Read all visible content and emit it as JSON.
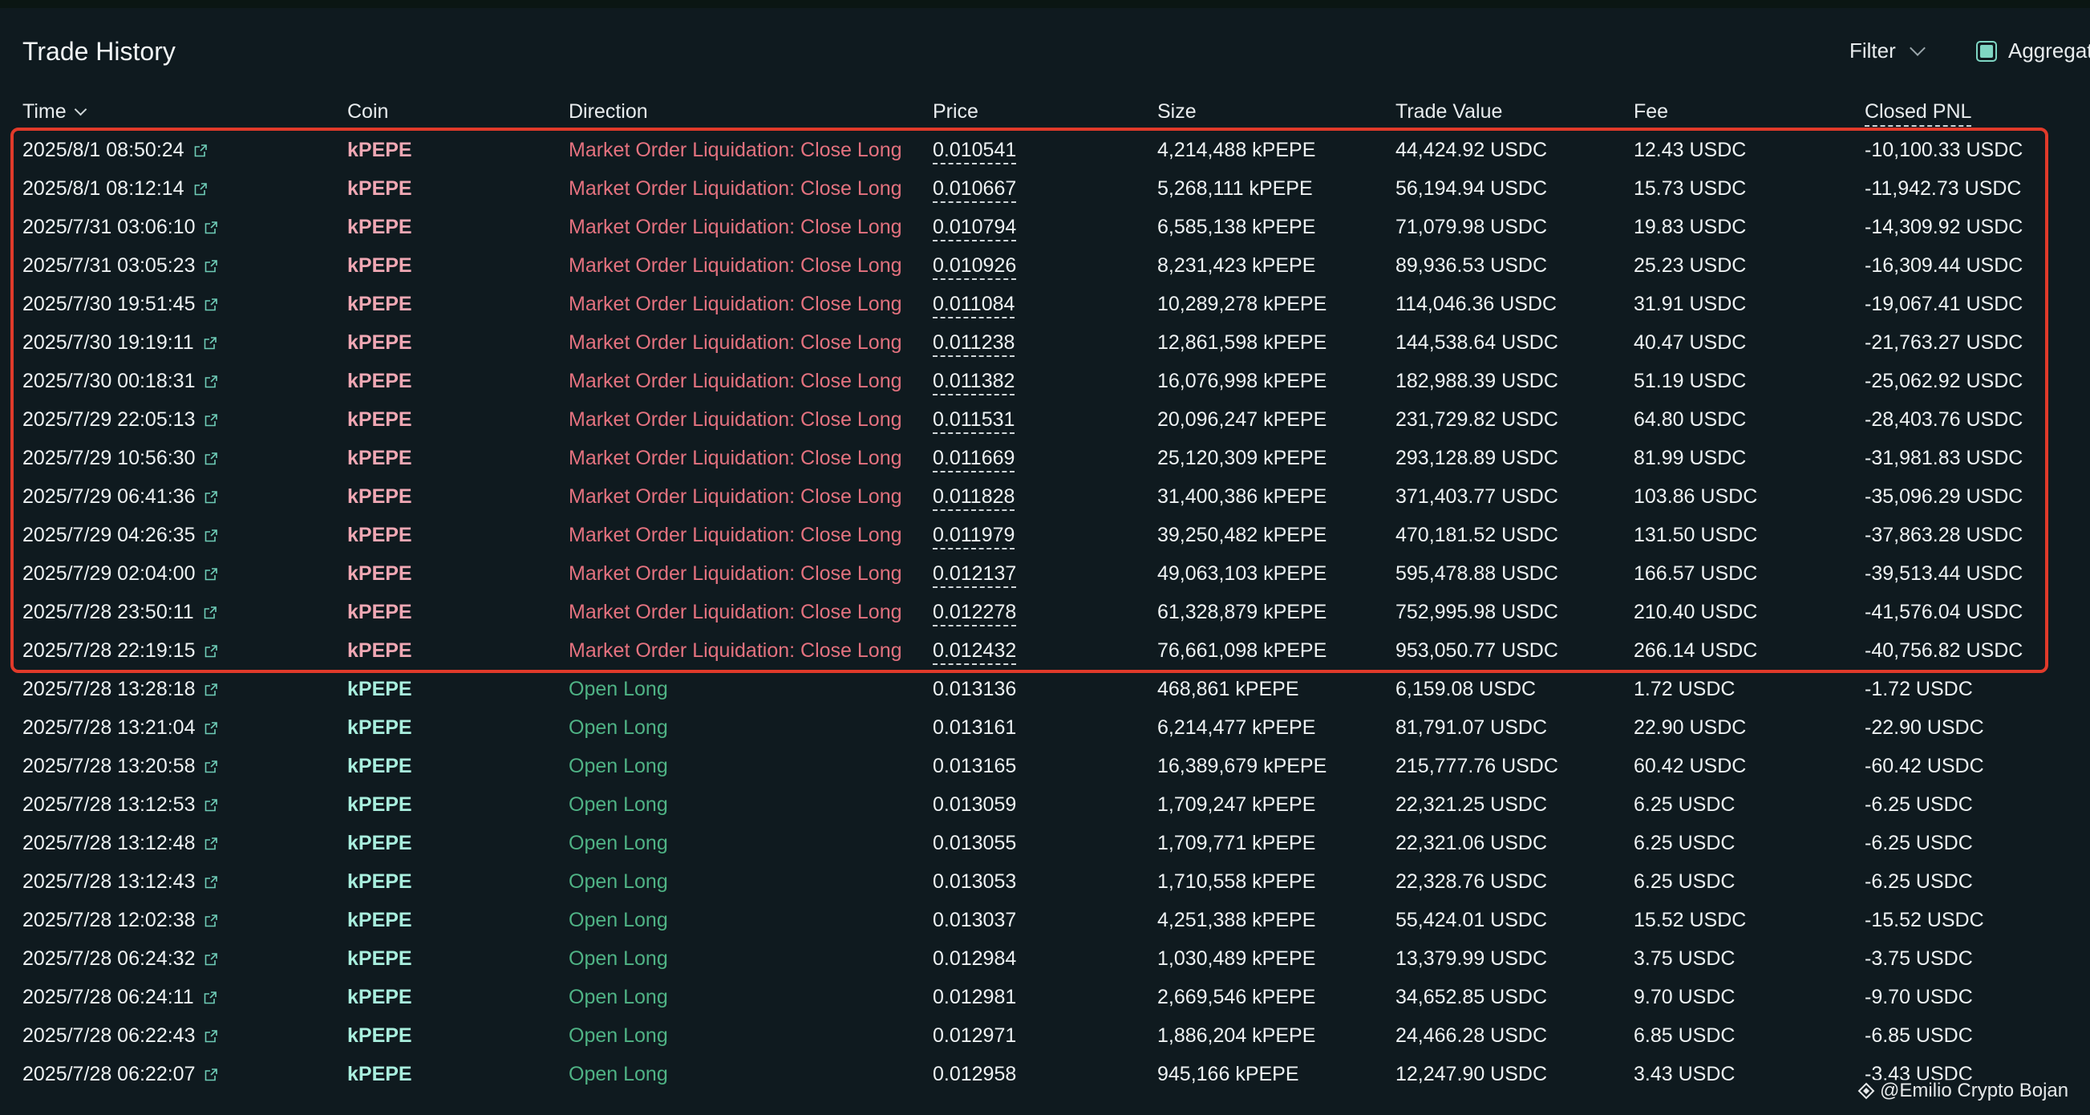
{
  "header": {
    "title": "Trade History",
    "filter_label": "Filter",
    "aggregate_label": "Aggregate"
  },
  "columns": {
    "time": "Time",
    "coin": "Coin",
    "direction": "Direction",
    "price": "Price",
    "size": "Size",
    "trade_value": "Trade Value",
    "fee": "Fee",
    "closed_pnl": "Closed PNL"
  },
  "rows": [
    {
      "time": "2025/8/1 08:50:24",
      "coin": "kPEPE",
      "direction": "Market Order Liquidation: Close Long",
      "price": "0.010541",
      "size": "4,214,488 kPEPE",
      "trade_value": "44,424.92 USDC",
      "fee": "12.43 USDC",
      "closed_pnl": "-10,100.33 USDC",
      "type": "liquidation"
    },
    {
      "time": "2025/8/1 08:12:14",
      "coin": "kPEPE",
      "direction": "Market Order Liquidation: Close Long",
      "price": "0.010667",
      "size": "5,268,111 kPEPE",
      "trade_value": "56,194.94 USDC",
      "fee": "15.73 USDC",
      "closed_pnl": "-11,942.73 USDC",
      "type": "liquidation"
    },
    {
      "time": "2025/7/31 03:06:10",
      "coin": "kPEPE",
      "direction": "Market Order Liquidation: Close Long",
      "price": "0.010794",
      "size": "6,585,138 kPEPE",
      "trade_value": "71,079.98 USDC",
      "fee": "19.83 USDC",
      "closed_pnl": "-14,309.92 USDC",
      "type": "liquidation"
    },
    {
      "time": "2025/7/31 03:05:23",
      "coin": "kPEPE",
      "direction": "Market Order Liquidation: Close Long",
      "price": "0.010926",
      "size": "8,231,423 kPEPE",
      "trade_value": "89,936.53 USDC",
      "fee": "25.23 USDC",
      "closed_pnl": "-16,309.44 USDC",
      "type": "liquidation"
    },
    {
      "time": "2025/7/30 19:51:45",
      "coin": "kPEPE",
      "direction": "Market Order Liquidation: Close Long",
      "price": "0.011084",
      "size": "10,289,278 kPEPE",
      "trade_value": "114,046.36 USDC",
      "fee": "31.91 USDC",
      "closed_pnl": "-19,067.41 USDC",
      "type": "liquidation"
    },
    {
      "time": "2025/7/30 19:19:11",
      "coin": "kPEPE",
      "direction": "Market Order Liquidation: Close Long",
      "price": "0.011238",
      "size": "12,861,598 kPEPE",
      "trade_value": "144,538.64 USDC",
      "fee": "40.47 USDC",
      "closed_pnl": "-21,763.27 USDC",
      "type": "liquidation"
    },
    {
      "time": "2025/7/30 00:18:31",
      "coin": "kPEPE",
      "direction": "Market Order Liquidation: Close Long",
      "price": "0.011382",
      "size": "16,076,998 kPEPE",
      "trade_value": "182,988.39 USDC",
      "fee": "51.19 USDC",
      "closed_pnl": "-25,062.92 USDC",
      "type": "liquidation"
    },
    {
      "time": "2025/7/29 22:05:13",
      "coin": "kPEPE",
      "direction": "Market Order Liquidation: Close Long",
      "price": "0.011531",
      "size": "20,096,247 kPEPE",
      "trade_value": "231,729.82 USDC",
      "fee": "64.80 USDC",
      "closed_pnl": "-28,403.76 USDC",
      "type": "liquidation"
    },
    {
      "time": "2025/7/29 10:56:30",
      "coin": "kPEPE",
      "direction": "Market Order Liquidation: Close Long",
      "price": "0.011669",
      "size": "25,120,309 kPEPE",
      "trade_value": "293,128.89 USDC",
      "fee": "81.99 USDC",
      "closed_pnl": "-31,981.83 USDC",
      "type": "liquidation"
    },
    {
      "time": "2025/7/29 06:41:36",
      "coin": "kPEPE",
      "direction": "Market Order Liquidation: Close Long",
      "price": "0.011828",
      "size": "31,400,386 kPEPE",
      "trade_value": "371,403.77 USDC",
      "fee": "103.86 USDC",
      "closed_pnl": "-35,096.29 USDC",
      "type": "liquidation"
    },
    {
      "time": "2025/7/29 04:26:35",
      "coin": "kPEPE",
      "direction": "Market Order Liquidation: Close Long",
      "price": "0.011979",
      "size": "39,250,482 kPEPE",
      "trade_value": "470,181.52 USDC",
      "fee": "131.50 USDC",
      "closed_pnl": "-37,863.28 USDC",
      "type": "liquidation"
    },
    {
      "time": "2025/7/29 02:04:00",
      "coin": "kPEPE",
      "direction": "Market Order Liquidation: Close Long",
      "price": "0.012137",
      "size": "49,063,103 kPEPE",
      "trade_value": "595,478.88 USDC",
      "fee": "166.57 USDC",
      "closed_pnl": "-39,513.44 USDC",
      "type": "liquidation"
    },
    {
      "time": "2025/7/28 23:50:11",
      "coin": "kPEPE",
      "direction": "Market Order Liquidation: Close Long",
      "price": "0.012278",
      "size": "61,328,879 kPEPE",
      "trade_value": "752,995.98 USDC",
      "fee": "210.40 USDC",
      "closed_pnl": "-41,576.04 USDC",
      "type": "liquidation"
    },
    {
      "time": "2025/7/28 22:19:15",
      "coin": "kPEPE",
      "direction": "Market Order Liquidation: Close Long",
      "price": "0.012432",
      "size": "76,661,098 kPEPE",
      "trade_value": "953,050.77 USDC",
      "fee": "266.14 USDC",
      "closed_pnl": "-40,756.82 USDC",
      "type": "liquidation"
    },
    {
      "time": "2025/7/28 13:28:18",
      "coin": "kPEPE",
      "direction": "Open Long",
      "price": "0.013136",
      "size": "468,861 kPEPE",
      "trade_value": "6,159.08 USDC",
      "fee": "1.72 USDC",
      "closed_pnl": "-1.72 USDC",
      "type": "open"
    },
    {
      "time": "2025/7/28 13:21:04",
      "coin": "kPEPE",
      "direction": "Open Long",
      "price": "0.013161",
      "size": "6,214,477 kPEPE",
      "trade_value": "81,791.07 USDC",
      "fee": "22.90 USDC",
      "closed_pnl": "-22.90 USDC",
      "type": "open"
    },
    {
      "time": "2025/7/28 13:20:58",
      "coin": "kPEPE",
      "direction": "Open Long",
      "price": "0.013165",
      "size": "16,389,679 kPEPE",
      "trade_value": "215,777.76 USDC",
      "fee": "60.42 USDC",
      "closed_pnl": "-60.42 USDC",
      "type": "open"
    },
    {
      "time": "2025/7/28 13:12:53",
      "coin": "kPEPE",
      "direction": "Open Long",
      "price": "0.013059",
      "size": "1,709,247 kPEPE",
      "trade_value": "22,321.25 USDC",
      "fee": "6.25 USDC",
      "closed_pnl": "-6.25 USDC",
      "type": "open"
    },
    {
      "time": "2025/7/28 13:12:48",
      "coin": "kPEPE",
      "direction": "Open Long",
      "price": "0.013055",
      "size": "1,709,771 kPEPE",
      "trade_value": "22,321.06 USDC",
      "fee": "6.25 USDC",
      "closed_pnl": "-6.25 USDC",
      "type": "open"
    },
    {
      "time": "2025/7/28 13:12:43",
      "coin": "kPEPE",
      "direction": "Open Long",
      "price": "0.013053",
      "size": "1,710,558 kPEPE",
      "trade_value": "22,328.76 USDC",
      "fee": "6.25 USDC",
      "closed_pnl": "-6.25 USDC",
      "type": "open"
    },
    {
      "time": "2025/7/28 12:02:38",
      "coin": "kPEPE",
      "direction": "Open Long",
      "price": "0.013037",
      "size": "4,251,388 kPEPE",
      "trade_value": "55,424.01 USDC",
      "fee": "15.52 USDC",
      "closed_pnl": "-15.52 USDC",
      "type": "open"
    },
    {
      "time": "2025/7/28 06:24:32",
      "coin": "kPEPE",
      "direction": "Open Long",
      "price": "0.012984",
      "size": "1,030,489 kPEPE",
      "trade_value": "13,379.99 USDC",
      "fee": "3.75 USDC",
      "closed_pnl": "-3.75 USDC",
      "type": "open"
    },
    {
      "time": "2025/7/28 06:24:11",
      "coin": "kPEPE",
      "direction": "Open Long",
      "price": "0.012981",
      "size": "2,669,546 kPEPE",
      "trade_value": "34,652.85 USDC",
      "fee": "9.70 USDC",
      "closed_pnl": "-9.70 USDC",
      "type": "open"
    },
    {
      "time": "2025/7/28 06:22:43",
      "coin": "kPEPE",
      "direction": "Open Long",
      "price": "0.012971",
      "size": "1,886,204 kPEPE",
      "trade_value": "24,466.28 USDC",
      "fee": "6.85 USDC",
      "closed_pnl": "-6.85 USDC",
      "type": "open"
    },
    {
      "time": "2025/7/28 06:22:07",
      "coin": "kPEPE",
      "direction": "Open Long",
      "price": "0.012958",
      "size": "945,166 kPEPE",
      "trade_value": "12,247.90 USDC",
      "fee": "3.43 USDC",
      "closed_pnl": "-3.43 USDC",
      "type": "open"
    }
  ],
  "colors": {
    "background": "#0f1a1f",
    "liquidation_direction": "#e4727f",
    "liquidation_coin": "#f0a8b4",
    "open_direction": "#4fb385",
    "open_coin": "#a9efde",
    "highlight_border": "#e03a2a",
    "checkbox_accent": "#7fd6c3"
  },
  "icons": {
    "row_link": "external-link-icon",
    "filter": "chevron-down-icon",
    "sort": "chevron-down-icon",
    "watermark": "diamond-logo-icon"
  },
  "watermark": {
    "text": "@Emilio Crypto Bojan"
  }
}
